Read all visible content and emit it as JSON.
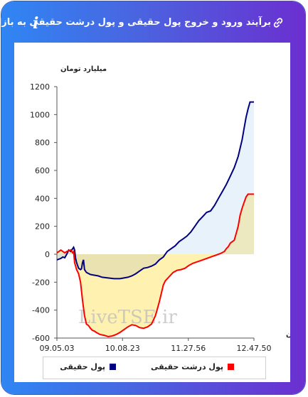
{
  "header": {
    "title": "برآیند ورود و خروج پول حقیقی و پول درشت حقیقی به بازار",
    "link_icon": "link-icon",
    "info_icon": "info-icon",
    "info_label": "i"
  },
  "colors": {
    "header_start": "#2f86f3",
    "header_end": "#6b2fd0",
    "series_real_money": "#000080",
    "series_big_money": "#ff0000",
    "fill_real_money": "#e8f2fa",
    "fill_big_money_positive": "#ece8bd",
    "fill_big_money_negative": "#fff2b0"
  },
  "chart_data": {
    "type": "line",
    "ylabel": "میلیارد تومان",
    "xlabel": "زمان",
    "ylim": [
      -600,
      1200
    ],
    "yticks": [
      -600,
      -400,
      -200,
      0,
      200,
      400,
      600,
      800,
      1000,
      1200
    ],
    "x_tick_labels": [
      "09.05.03",
      "10.08.23",
      "11.27.56",
      "12.47.50"
    ],
    "xlim": [
      0,
      100
    ],
    "x_tick_positions": [
      0,
      33.3,
      66.7,
      100
    ],
    "grid": false,
    "legend_position": "bottom",
    "watermark": "LiveTSE.ir",
    "series": [
      {
        "name": "پول حقیقی",
        "color": "#000080",
        "points": [
          [
            0,
            -40
          ],
          [
            2,
            -30
          ],
          [
            3,
            -20
          ],
          [
            4,
            -25
          ],
          [
            5,
            0
          ],
          [
            6,
            30
          ],
          [
            7,
            20
          ],
          [
            8,
            40
          ],
          [
            8.5,
            50
          ],
          [
            9,
            30
          ],
          [
            9.5,
            -30
          ],
          [
            10,
            -60
          ],
          [
            11,
            -100
          ],
          [
            12,
            -110
          ],
          [
            12.5,
            -105
          ],
          [
            13,
            -60
          ],
          [
            13.5,
            -40
          ],
          [
            14,
            -110
          ],
          [
            15,
            -130
          ],
          [
            17,
            -145
          ],
          [
            19,
            -150
          ],
          [
            21,
            -155
          ],
          [
            23,
            -165
          ],
          [
            26,
            -170
          ],
          [
            29,
            -175
          ],
          [
            32,
            -175
          ],
          [
            34,
            -170
          ],
          [
            36,
            -165
          ],
          [
            38,
            -155
          ],
          [
            40,
            -140
          ],
          [
            42,
            -120
          ],
          [
            44,
            -100
          ],
          [
            46,
            -95
          ],
          [
            48,
            -85
          ],
          [
            50,
            -70
          ],
          [
            52,
            -40
          ],
          [
            54,
            -20
          ],
          [
            56,
            20
          ],
          [
            58,
            40
          ],
          [
            60,
            60
          ],
          [
            62,
            90
          ],
          [
            64,
            110
          ],
          [
            66,
            130
          ],
          [
            68,
            160
          ],
          [
            70,
            200
          ],
          [
            72,
            240
          ],
          [
            74,
            270
          ],
          [
            76,
            300
          ],
          [
            78,
            310
          ],
          [
            80,
            350
          ],
          [
            82,
            400
          ],
          [
            84,
            450
          ],
          [
            86,
            500
          ],
          [
            88,
            560
          ],
          [
            90,
            620
          ],
          [
            91,
            660
          ],
          [
            92,
            700
          ],
          [
            93,
            760
          ],
          [
            94,
            820
          ],
          [
            95,
            900
          ],
          [
            96,
            980
          ],
          [
            97,
            1040
          ],
          [
            98,
            1090
          ],
          [
            99,
            1090
          ],
          [
            100,
            1090
          ]
        ]
      },
      {
        "name": "پول درشت حقیقی",
        "color": "#ff0000",
        "points": [
          [
            0,
            10
          ],
          [
            1,
            20
          ],
          [
            2,
            30
          ],
          [
            3,
            20
          ],
          [
            4,
            10
          ],
          [
            5,
            20
          ],
          [
            6,
            25
          ],
          [
            7,
            30
          ],
          [
            8,
            10
          ],
          [
            8.5,
            20
          ],
          [
            9,
            -60
          ],
          [
            10,
            -110
          ],
          [
            11,
            -140
          ],
          [
            12,
            -200
          ],
          [
            13,
            -330
          ],
          [
            14,
            -440
          ],
          [
            15,
            -500
          ],
          [
            16,
            -510
          ],
          [
            17,
            -530
          ],
          [
            18,
            -545
          ],
          [
            19,
            -550
          ],
          [
            20,
            -560
          ],
          [
            22,
            -575
          ],
          [
            24,
            -580
          ],
          [
            26,
            -590
          ],
          [
            28,
            -585
          ],
          [
            30,
            -575
          ],
          [
            32,
            -560
          ],
          [
            34,
            -540
          ],
          [
            36,
            -520
          ],
          [
            38,
            -505
          ],
          [
            40,
            -510
          ],
          [
            42,
            -525
          ],
          [
            44,
            -530
          ],
          [
            46,
            -520
          ],
          [
            48,
            -500
          ],
          [
            50,
            -440
          ],
          [
            51,
            -390
          ],
          [
            52,
            -340
          ],
          [
            53,
            -280
          ],
          [
            54,
            -220
          ],
          [
            55,
            -190
          ],
          [
            57,
            -160
          ],
          [
            59,
            -130
          ],
          [
            61,
            -115
          ],
          [
            63,
            -110
          ],
          [
            65,
            -100
          ],
          [
            67,
            -80
          ],
          [
            69,
            -65
          ],
          [
            71,
            -55
          ],
          [
            73,
            -45
          ],
          [
            75,
            -35
          ],
          [
            77,
            -25
          ],
          [
            79,
            -15
          ],
          [
            81,
            -5
          ],
          [
            83,
            5
          ],
          [
            85,
            20
          ],
          [
            86,
            40
          ],
          [
            87,
            55
          ],
          [
            88,
            80
          ],
          [
            89,
            90
          ],
          [
            90,
            100
          ],
          [
            91,
            150
          ],
          [
            92,
            200
          ],
          [
            93,
            280
          ],
          [
            94,
            330
          ],
          [
            95,
            370
          ],
          [
            96,
            410
          ],
          [
            97,
            430
          ],
          [
            98,
            430
          ],
          [
            99,
            430
          ],
          [
            100,
            430
          ]
        ]
      }
    ]
  }
}
